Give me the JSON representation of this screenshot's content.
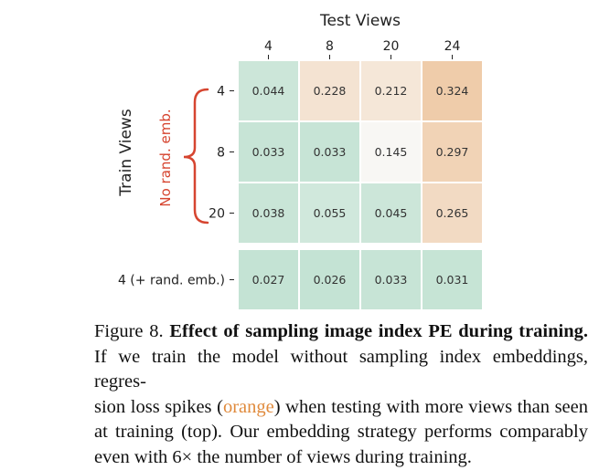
{
  "chart_data": {
    "type": "heatmap",
    "title": "Test Views",
    "xlabel": "Test Views",
    "ylabel": "Train Views",
    "bracket_label": "No rand. emb.",
    "x_categories": [
      "4",
      "8",
      "20",
      "24"
    ],
    "top_block": {
      "row_labels": [
        "4",
        "8",
        "20"
      ],
      "values": [
        [
          0.044,
          0.228,
          0.212,
          0.324
        ],
        [
          0.033,
          0.033,
          0.145,
          0.297
        ],
        [
          0.038,
          0.055,
          0.045,
          0.265
        ]
      ],
      "text": [
        [
          "0.044",
          "0.228",
          "0.212",
          "0.324"
        ],
        [
          "0.033",
          "0.033",
          "0.145",
          "0.297"
        ],
        [
          "0.038",
          "0.055",
          "0.045",
          "0.265"
        ]
      ]
    },
    "bottom_block": {
      "row_labels": [
        "4 (+ rand. emb.)"
      ],
      "values": [
        [
          0.027,
          0.026,
          0.033,
          0.031
        ]
      ],
      "text": [
        [
          "0.027",
          "0.026",
          "0.033",
          "0.031"
        ]
      ]
    },
    "colormap": {
      "low": "#c1e2d2",
      "mid": "#f8f7f4",
      "high": "#efcba8",
      "vmin": 0.02,
      "vmid": 0.145,
      "vmax": 0.33
    },
    "bracket_color": "#d64530"
  },
  "caption": {
    "figure_label": "Figure 8.",
    "title": "Effect of sampling image index PE during training.",
    "line2": "If we train the model without sampling index embeddings, regres-",
    "line3_a": "sion loss spikes (",
    "line3_orange": "orange",
    "line3_b": ") when testing with more views than seen",
    "line4": "at training (top).  Our embedding strategy performs comparably",
    "line5": "even with 6× the number of views during training."
  }
}
